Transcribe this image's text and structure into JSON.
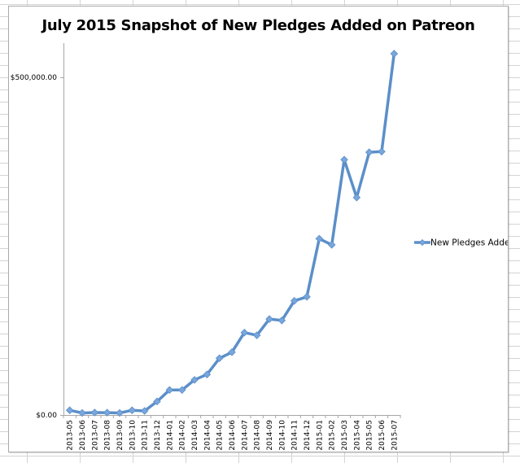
{
  "chart_data": {
    "type": "line",
    "title": "July 2015 Snapshot of New Pledges Added on Patreon",
    "xlabel": "",
    "ylabel": "",
    "ylim": [
      0,
      560000
    ],
    "yticks": [
      0,
      500000
    ],
    "ytick_labels": [
      "$0.00",
      "$500,000.00"
    ],
    "grid": false,
    "legend_position": "right",
    "categories": [
      "2013-05",
      "2013-06",
      "2013-07",
      "2013-08",
      "2013-09",
      "2013-10",
      "2013-11",
      "2013-12",
      "2014-01",
      "2014-02",
      "2014-03",
      "2014-04",
      "2014-05",
      "2014-06",
      "2014-07",
      "2014-08",
      "2014-09",
      "2014-10",
      "2014-11",
      "2014-12",
      "2015-01",
      "2015-02",
      "2015-03",
      "2015-04",
      "2015-05",
      "2015-06",
      "2015-07"
    ],
    "series": [
      {
        "name": "New Pledges Added",
        "color": "#5b8fc9",
        "marker": "diamond",
        "values": [
          7000,
          3000,
          3600,
          3500,
          3000,
          7000,
          6000,
          20000,
          37000,
          37000,
          52000,
          60000,
          84000,
          93000,
          122000,
          118000,
          142000,
          140000,
          169000,
          175000,
          261000,
          252000,
          378000,
          322000,
          389000,
          390000,
          535000
        ]
      }
    ]
  }
}
